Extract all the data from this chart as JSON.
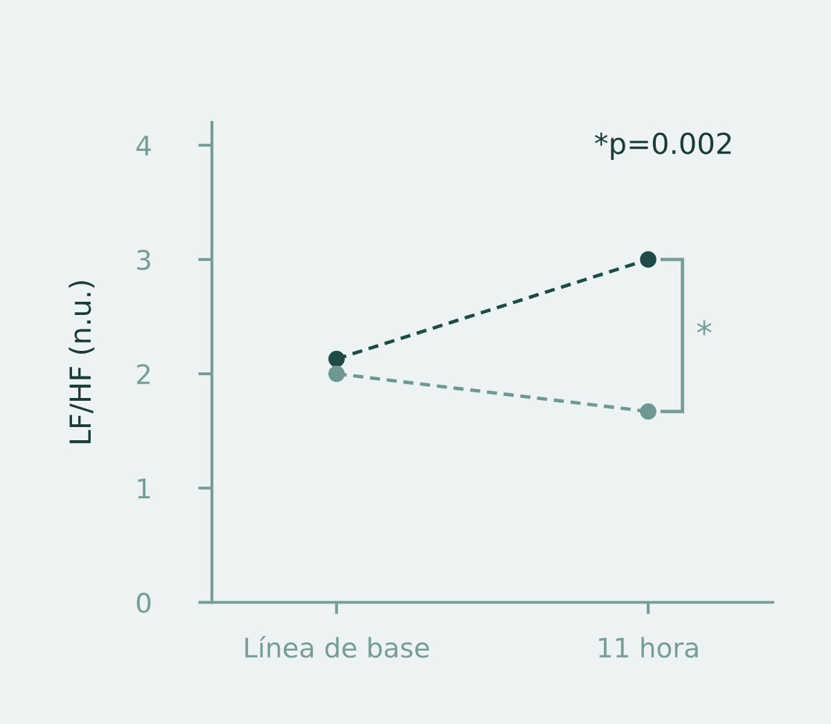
{
  "chart_data": {
    "type": "line",
    "ylabel": "LF/HF (n.u.)",
    "categories": [
      "Línea de base",
      "11 hora"
    ],
    "series": [
      {
        "color": "#1f4a48",
        "values": [
          2.13,
          3.0
        ]
      },
      {
        "color": "#6f9895",
        "values": [
          2.0,
          1.67
        ]
      }
    ],
    "ylim": [
      0,
      4.2
    ],
    "yticks": [
      0,
      1,
      2,
      3,
      4
    ],
    "marker": "circle",
    "line_style": "dashed",
    "grid": false,
    "annotations": [
      "*p=0.002",
      "*"
    ]
  }
}
